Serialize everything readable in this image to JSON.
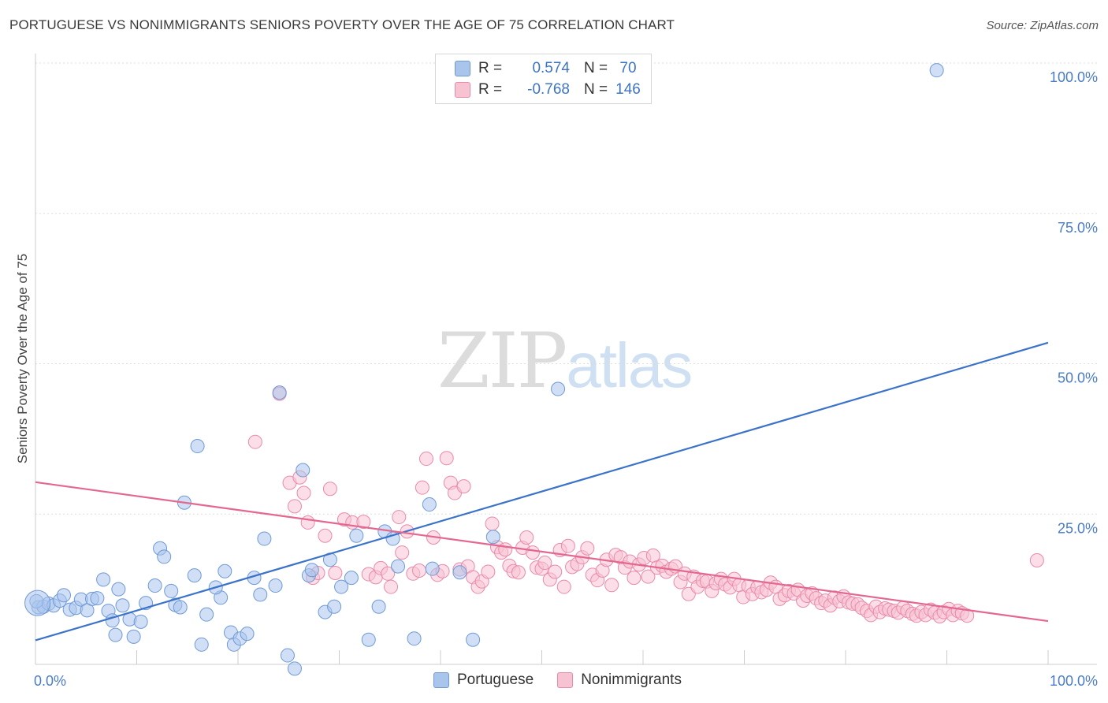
{
  "header": {
    "title": "PORTUGUESE VS NONIMMIGRANTS SENIORS POVERTY OVER THE AGE OF 75 CORRELATION CHART",
    "source": "Source: ZipAtlas.com"
  },
  "watermark": {
    "zip": "ZIP",
    "atlas": "atlas"
  },
  "legend": {
    "rows": [
      {
        "r_label": "R =",
        "r_value": "0.574",
        "n_label": "N =",
        "n_value": "70",
        "color": "#a9c5ec",
        "border": "#6f9ad6"
      },
      {
        "r_label": "R =",
        "r_value": "-0.768",
        "n_label": "N =",
        "n_value": "146",
        "color": "#f7c3d3",
        "border": "#e98aaa"
      }
    ]
  },
  "bottom_legend": {
    "items": [
      "Portuguese",
      "Nonimmigrants"
    ]
  },
  "chart_data": {
    "type": "scatter",
    "title": "PORTUGUESE VS NONIMMIGRANTS SENIORS POVERTY OVER THE AGE OF 75 CORRELATION CHART",
    "xlabel": "",
    "ylabel": "Seniors Poverty Over the Age of 75",
    "xlim": [
      0,
      100
    ],
    "ylim": [
      0,
      100
    ],
    "x_tick_labels": [
      "0.0%",
      "100.0%"
    ],
    "y_tick_labels": [
      "25.0%",
      "50.0%",
      "75.0%",
      "100.0%"
    ],
    "y_ticks": [
      25,
      50,
      75,
      100
    ],
    "grid": true,
    "legend_position": "top-center",
    "series": [
      {
        "name": "Portuguese",
        "color": "#6f9ad6",
        "fill": "#a9c5ec",
        "trend": {
          "x": [
            0,
            100
          ],
          "y": [
            4,
            53.5
          ]
        },
        "points": [
          [
            0.3,
            9.5
          ],
          [
            0.8,
            9.6
          ],
          [
            1.3,
            10.1
          ],
          [
            1.8,
            9.8
          ],
          [
            2.4,
            10.6
          ],
          [
            2.8,
            11.5
          ],
          [
            3.4,
            9.1
          ],
          [
            4.0,
            9.4
          ],
          [
            4.5,
            10.8
          ],
          [
            5.1,
            9.0
          ],
          [
            5.6,
            10.9
          ],
          [
            6.1,
            11.0
          ],
          [
            6.7,
            14.1
          ],
          [
            7.2,
            8.9
          ],
          [
            7.6,
            7.3
          ],
          [
            8.2,
            12.5
          ],
          [
            8.6,
            9.8
          ],
          [
            9.3,
            7.5
          ],
          [
            9.7,
            4.6
          ],
          [
            10.4,
            7.1
          ],
          [
            10.9,
            10.2
          ],
          [
            11.8,
            13.1
          ],
          [
            12.3,
            19.3
          ],
          [
            12.7,
            17.9
          ],
          [
            13.4,
            12.2
          ],
          [
            13.8,
            9.9
          ],
          [
            14.3,
            9.5
          ],
          [
            14.7,
            26.9
          ],
          [
            15.7,
            14.8
          ],
          [
            16.0,
            36.3
          ],
          [
            16.4,
            3.3
          ],
          [
            16.9,
            8.3
          ],
          [
            18.3,
            11.1
          ],
          [
            18.7,
            15.5
          ],
          [
            19.3,
            5.3
          ],
          [
            19.6,
            3.3
          ],
          [
            20.2,
            4.3
          ],
          [
            20.9,
            5.1
          ],
          [
            21.6,
            14.4
          ],
          [
            22.2,
            11.6
          ],
          [
            22.6,
            20.9
          ],
          [
            23.7,
            13.1
          ],
          [
            24.1,
            45.2
          ],
          [
            24.9,
            1.5
          ],
          [
            25.6,
            -0.7
          ],
          [
            26.4,
            32.3
          ],
          [
            27.0,
            14.8
          ],
          [
            27.3,
            15.7
          ],
          [
            28.6,
            8.7
          ],
          [
            29.1,
            17.4
          ],
          [
            29.5,
            9.6
          ],
          [
            30.2,
            12.9
          ],
          [
            31.2,
            14.4
          ],
          [
            32.9,
            4.1
          ],
          [
            33.9,
            9.6
          ],
          [
            34.5,
            22.1
          ],
          [
            35.3,
            20.9
          ],
          [
            35.8,
            16.3
          ],
          [
            37.4,
            4.3
          ],
          [
            38.9,
            26.6
          ],
          [
            39.2,
            15.9
          ],
          [
            41.9,
            15.3
          ],
          [
            43.2,
            4.1
          ],
          [
            45.2,
            21.2
          ],
          [
            51.6,
            45.8
          ],
          [
            89.0,
            98.8
          ],
          [
            0.1,
            10.5
          ],
          [
            7.9,
            4.9
          ],
          [
            31.7,
            21.4
          ],
          [
            17.8,
            12.8
          ]
        ],
        "big_point": [
          0.2,
          10.2
        ]
      },
      {
        "name": "Nonimmigrants",
        "color": "#e98aaa",
        "fill": "#f7c3d3",
        "trend": {
          "x": [
            0,
            100
          ],
          "y": [
            30.3,
            7.2
          ]
        },
        "points": [
          [
            21.7,
            37.0
          ],
          [
            24.1,
            45.0
          ],
          [
            25.1,
            30.2
          ],
          [
            25.6,
            26.3
          ],
          [
            26.1,
            31.1
          ],
          [
            26.5,
            28.5
          ],
          [
            26.9,
            23.6
          ],
          [
            27.4,
            14.4
          ],
          [
            27.9,
            15.2
          ],
          [
            28.6,
            21.4
          ],
          [
            29.1,
            29.2
          ],
          [
            29.6,
            15.2
          ],
          [
            30.5,
            24.1
          ],
          [
            31.3,
            23.6
          ],
          [
            32.4,
            23.7
          ],
          [
            32.9,
            15.0
          ],
          [
            33.6,
            14.5
          ],
          [
            34.1,
            16.0
          ],
          [
            34.8,
            15.1
          ],
          [
            35.1,
            12.9
          ],
          [
            35.9,
            24.5
          ],
          [
            36.2,
            18.6
          ],
          [
            36.7,
            22.1
          ],
          [
            37.3,
            15.1
          ],
          [
            37.9,
            15.6
          ],
          [
            38.2,
            29.4
          ],
          [
            38.6,
            34.2
          ],
          [
            39.3,
            21.1
          ],
          [
            39.7,
            14.9
          ],
          [
            40.2,
            15.5
          ],
          [
            40.6,
            34.3
          ],
          [
            41.0,
            30.2
          ],
          [
            41.4,
            28.5
          ],
          [
            41.9,
            15.8
          ],
          [
            42.3,
            29.6
          ],
          [
            42.7,
            16.3
          ],
          [
            43.2,
            14.5
          ],
          [
            43.7,
            12.9
          ],
          [
            44.1,
            13.8
          ],
          [
            44.7,
            15.4
          ],
          [
            45.1,
            23.4
          ],
          [
            45.6,
            19.5
          ],
          [
            46.0,
            18.6
          ],
          [
            46.4,
            19.1
          ],
          [
            46.8,
            16.4
          ],
          [
            47.2,
            15.5
          ],
          [
            47.7,
            15.3
          ],
          [
            48.1,
            19.4
          ],
          [
            48.5,
            21.1
          ],
          [
            49.1,
            18.6
          ],
          [
            49.5,
            16.1
          ],
          [
            50.0,
            15.9
          ],
          [
            50.3,
            16.9
          ],
          [
            50.8,
            14.1
          ],
          [
            51.3,
            15.4
          ],
          [
            51.8,
            19.0
          ],
          [
            52.2,
            12.9
          ],
          [
            52.6,
            19.7
          ],
          [
            53.0,
            16.2
          ],
          [
            53.5,
            16.7
          ],
          [
            54.0,
            17.8
          ],
          [
            54.5,
            19.3
          ],
          [
            55.0,
            14.9
          ],
          [
            55.5,
            14.0
          ],
          [
            56.0,
            15.6
          ],
          [
            56.4,
            17.4
          ],
          [
            56.9,
            13.2
          ],
          [
            57.3,
            18.2
          ],
          [
            57.8,
            17.8
          ],
          [
            58.2,
            16.1
          ],
          [
            58.7,
            17.1
          ],
          [
            59.1,
            14.4
          ],
          [
            59.6,
            16.6
          ],
          [
            60.1,
            17.7
          ],
          [
            60.5,
            14.6
          ],
          [
            61.0,
            18.1
          ],
          [
            61.4,
            16.1
          ],
          [
            61.9,
            16.4
          ],
          [
            62.3,
            15.4
          ],
          [
            62.8,
            15.9
          ],
          [
            63.2,
            16.3
          ],
          [
            63.7,
            13.7
          ],
          [
            64.1,
            15.1
          ],
          [
            64.5,
            11.7
          ],
          [
            65.0,
            14.6
          ],
          [
            65.4,
            12.9
          ],
          [
            65.9,
            13.9
          ],
          [
            66.3,
            13.8
          ],
          [
            66.8,
            12.2
          ],
          [
            67.2,
            13.5
          ],
          [
            67.7,
            14.2
          ],
          [
            68.1,
            13.3
          ],
          [
            68.6,
            12.8
          ],
          [
            69.0,
            14.2
          ],
          [
            69.5,
            13.2
          ],
          [
            69.9,
            11.2
          ],
          [
            70.4,
            13.0
          ],
          [
            70.8,
            11.7
          ],
          [
            71.3,
            12.8
          ],
          [
            71.7,
            12.0
          ],
          [
            72.2,
            12.4
          ],
          [
            72.6,
            13.6
          ],
          [
            73.1,
            12.9
          ],
          [
            73.5,
            10.9
          ],
          [
            74.0,
            11.5
          ],
          [
            74.4,
            12.2
          ],
          [
            74.9,
            11.8
          ],
          [
            75.3,
            12.4
          ],
          [
            75.8,
            10.6
          ],
          [
            76.2,
            11.4
          ],
          [
            76.7,
            11.8
          ],
          [
            77.1,
            11.0
          ],
          [
            77.6,
            10.2
          ],
          [
            78.0,
            10.6
          ],
          [
            78.5,
            9.8
          ],
          [
            78.9,
            11.1
          ],
          [
            79.4,
            10.5
          ],
          [
            79.8,
            11.3
          ],
          [
            80.3,
            10.3
          ],
          [
            80.7,
            10.1
          ],
          [
            81.2,
            10.0
          ],
          [
            81.6,
            9.4
          ],
          [
            82.1,
            8.9
          ],
          [
            82.5,
            8.2
          ],
          [
            83.0,
            9.6
          ],
          [
            83.4,
            8.7
          ],
          [
            83.9,
            9.3
          ],
          [
            84.3,
            9.1
          ],
          [
            84.8,
            8.9
          ],
          [
            85.2,
            8.6
          ],
          [
            85.7,
            9.4
          ],
          [
            86.1,
            8.9
          ],
          [
            86.6,
            8.4
          ],
          [
            87.0,
            8.1
          ],
          [
            87.5,
            8.7
          ],
          [
            87.9,
            8.2
          ],
          [
            88.4,
            9.1
          ],
          [
            88.8,
            8.6
          ],
          [
            89.3,
            8.0
          ],
          [
            89.7,
            8.7
          ],
          [
            90.2,
            9.2
          ],
          [
            90.6,
            8.2
          ],
          [
            91.1,
            8.9
          ],
          [
            91.5,
            8.5
          ],
          [
            92.0,
            8.1
          ],
          [
            98.9,
            17.3
          ]
        ]
      }
    ]
  }
}
